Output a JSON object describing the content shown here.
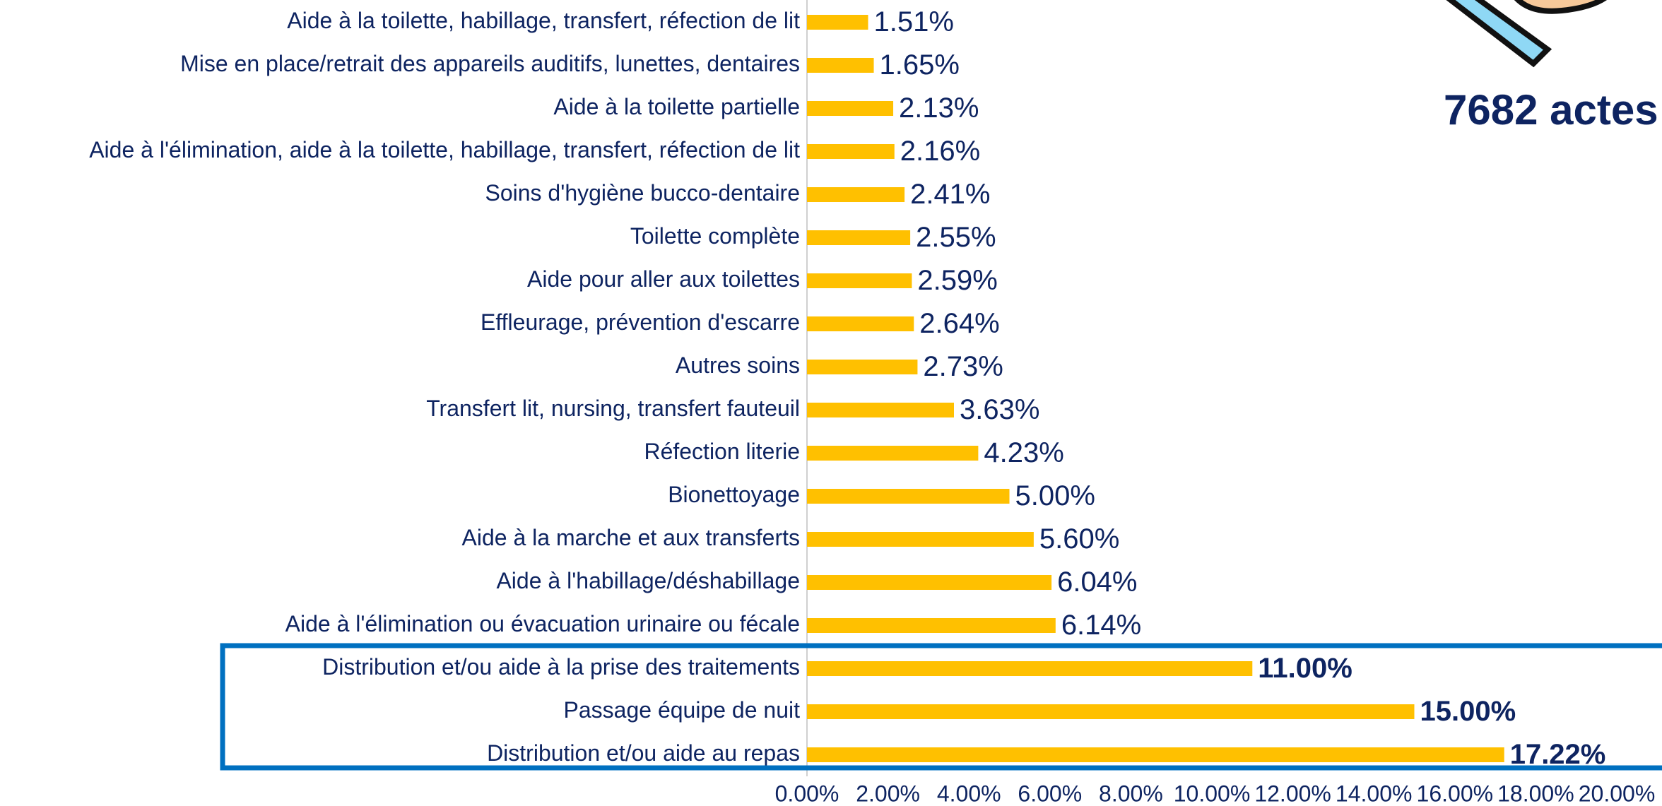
{
  "chart_data": {
    "type": "hbar",
    "annotation": "7682 actes",
    "categories": [
      "Aide à la toilette, habillage, transfert, réfection de lit",
      "Mise en place/retrait des appareils auditifs, lunettes, dentaires",
      "Aide à la toilette partielle",
      "Aide à l'élimination, aide à la toilette, habillage, transfert, réfection de lit",
      "Soins d'hygiène bucco-dentaire",
      "Toilette complète",
      "Aide pour aller aux toilettes",
      "Effleurage, prévention d'escarre",
      "Autres soins",
      "Transfert lit, nursing, transfert fauteuil",
      "Réfection literie",
      "Bionettoyage",
      "Aide à la marche et aux transferts",
      "Aide à l'habillage/déshabillage",
      "Aide à l'élimination ou évacuation urinaire ou fécale",
      "Distribution et/ou aide à la prise des traitements",
      "Passage équipe de nuit",
      "Distribution et/ou aide au repas"
    ],
    "values": [
      1.51,
      1.65,
      2.13,
      2.16,
      2.41,
      2.55,
      2.59,
      2.64,
      2.73,
      3.63,
      4.23,
      5.0,
      5.6,
      6.04,
      6.14,
      11.0,
      15.0,
      17.22
    ],
    "value_labels": [
      "1.51%",
      "1.65%",
      "2.13%",
      "2.16%",
      "2.41%",
      "2.55%",
      "2.59%",
      "2.64%",
      "2.73%",
      "3.63%",
      "4.23%",
      "5.00%",
      "5.60%",
      "6.04%",
      "6.14%",
      "11.00%",
      "15.00%",
      "17.22%"
    ],
    "color": "#ffc000",
    "emphasized": [
      15,
      16,
      17
    ],
    "highlight_color": "#0070c0",
    "xlim": [
      0,
      20
    ],
    "xticks": [
      {
        "value": 0,
        "label": "0.00%"
      },
      {
        "value": 2,
        "label": "2.00%"
      },
      {
        "value": 4,
        "label": "4.00%"
      },
      {
        "value": 6,
        "label": "6.00%"
      },
      {
        "value": 8,
        "label": "8.00%"
      },
      {
        "value": 10,
        "label": "10.00%"
      },
      {
        "value": 12,
        "label": "12.00%"
      },
      {
        "value": 14,
        "label": "14.00%"
      },
      {
        "value": 16,
        "label": "16.00%"
      },
      {
        "value": 18,
        "label": "18.00%"
      },
      {
        "value": 20,
        "label": "20.00%"
      }
    ]
  }
}
